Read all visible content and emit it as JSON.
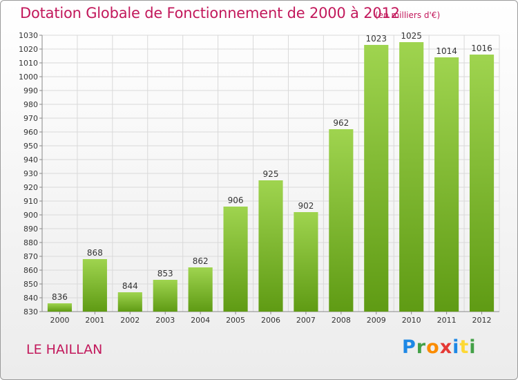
{
  "header": {
    "title": "Dotation Globale de Fonctionnement de 2000 à 2012",
    "subtitle": "(en milliers d'€)"
  },
  "footer": {
    "place": "LE HAILLAN",
    "logo": "Proxiti"
  },
  "colors": {
    "title": "#c2185b",
    "bar_top": "#9fd44f",
    "bar_bottom": "#5f9b14",
    "grid": "#d9d9d9",
    "logo_letters": [
      "#1e88e5",
      "#43a047",
      "#fb8c00",
      "#e53935",
      "#1e88e5",
      "#fdd835",
      "#43a047"
    ]
  },
  "chart_data": {
    "type": "bar",
    "title": "Dotation Globale de Fonctionnement de 2000 à 2012",
    "subtitle": "(en milliers d'€)",
    "xlabel": "",
    "ylabel": "",
    "categories": [
      "2000",
      "2001",
      "2002",
      "2003",
      "2004",
      "2005",
      "2006",
      "2007",
      "2008",
      "2009",
      "2010",
      "2011",
      "2012"
    ],
    "values": [
      836,
      868,
      844,
      853,
      862,
      906,
      925,
      902,
      962,
      1023,
      1025,
      1014,
      1016
    ],
    "data_labels": [
      "836",
      "868",
      "844",
      "853",
      "862",
      "906",
      "925",
      "902",
      "962",
      "1023",
      "1025",
      "1014",
      "1016"
    ],
    "ylim": [
      830,
      1030
    ],
    "ytick_step": 10,
    "yticks": [
      "830",
      "840",
      "850",
      "860",
      "870",
      "880",
      "890",
      "900",
      "910",
      "920",
      "930",
      "940",
      "950",
      "960",
      "970",
      "980",
      "990",
      "1000",
      "1010",
      "1020",
      "1030"
    ],
    "grid": true,
    "legend": "none"
  }
}
